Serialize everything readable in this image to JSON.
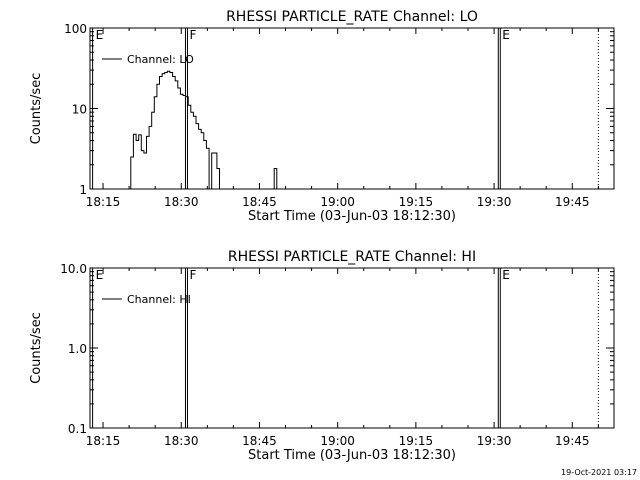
{
  "footer": {
    "timestamp": "19-Oct-2021 03:17"
  },
  "chart_data": [
    {
      "type": "line",
      "title": "RHESSI PARTICLE_RATE Channel: LO",
      "xlabel": "Start Time (03-Jun-03 18:12:30)",
      "ylabel": "Counts/sec",
      "yscale": "log",
      "xlim": [
        "18:12:30",
        "19:53:00"
      ],
      "ylim": [
        1,
        100
      ],
      "x_ticks": [
        "18:15",
        "18:30",
        "18:45",
        "19:00",
        "19:15",
        "19:30",
        "19:45"
      ],
      "y_ticks": [
        "1",
        "10",
        "100"
      ],
      "legend": {
        "placement": "top-left",
        "entries": [
          "Channel: LO"
        ]
      },
      "grid": false,
      "markers": [
        {
          "time": "18:13:00",
          "label": "E",
          "style": "solid"
        },
        {
          "time": "18:31:00",
          "label": "F",
          "style": "double"
        },
        {
          "time": "19:31:00",
          "label": "E",
          "style": "double"
        },
        {
          "time": "19:50:00",
          "label": "",
          "style": "dotted"
        }
      ],
      "series": [
        {
          "name": "Channel: LO",
          "x": [
            "18:19:50",
            "18:20:20",
            "18:20:50",
            "18:21:20",
            "18:21:50",
            "18:22:20",
            "18:22:50",
            "18:23:20",
            "18:23:50",
            "18:24:20",
            "18:24:50",
            "18:25:20",
            "18:25:50",
            "18:26:20",
            "18:26:50",
            "18:27:20",
            "18:27:50",
            "18:28:20",
            "18:28:50",
            "18:29:20",
            "18:29:50",
            "18:30:20",
            "18:30:50",
            "18:31:20",
            "18:31:50",
            "18:32:20",
            "18:32:50",
            "18:33:20",
            "18:33:50",
            "18:34:20",
            "18:34:50",
            "18:35:20",
            "18:35:50",
            "18:36:20",
            "18:36:50",
            "18:37:20",
            "18:37:50",
            "18:38:20",
            "18:47:20",
            "18:47:50",
            "18:48:20"
          ],
          "y": [
            1.0,
            2.5,
            4.8,
            4.0,
            4.7,
            3.0,
            2.8,
            4.5,
            6.0,
            9.0,
            14.0,
            20.0,
            25.0,
            27.0,
            28.0,
            29.0,
            28.0,
            25.0,
            22.0,
            18.0,
            15.0,
            14.5,
            14.0,
            11.0,
            9.0,
            8.0,
            6.5,
            5.5,
            5.0,
            4.0,
            3.2,
            1.0,
            2.8,
            2.8,
            1.8,
            1.0,
            1.0,
            1.0,
            1.0,
            1.8,
            1.0
          ]
        }
      ]
    },
    {
      "type": "line",
      "title": "RHESSI PARTICLE_RATE Channel: HI",
      "xlabel": "Start Time (03-Jun-03 18:12:30)",
      "ylabel": "Counts/sec",
      "yscale": "log",
      "xlim": [
        "18:12:30",
        "19:53:00"
      ],
      "ylim": [
        0.1,
        10.0
      ],
      "x_ticks": [
        "18:15",
        "18:30",
        "18:45",
        "19:00",
        "19:15",
        "19:30",
        "19:45"
      ],
      "y_ticks": [
        "0.1",
        "1.0",
        "10.0"
      ],
      "legend": {
        "placement": "top-left",
        "entries": [
          "Channel: HI"
        ]
      },
      "grid": false,
      "markers": [
        {
          "time": "18:13:00",
          "label": "E",
          "style": "solid"
        },
        {
          "time": "18:31:00",
          "label": "F",
          "style": "double"
        },
        {
          "time": "19:31:00",
          "label": "E",
          "style": "double"
        },
        {
          "time": "19:50:00",
          "label": "",
          "style": "dotted"
        }
      ],
      "series": [
        {
          "name": "Channel: HI",
          "x": [],
          "y": []
        }
      ]
    }
  ]
}
